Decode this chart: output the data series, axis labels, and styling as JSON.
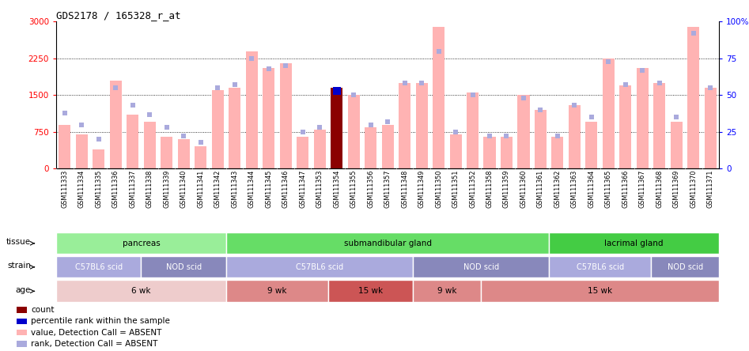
{
  "title": "GDS2178 / 165328_r_at",
  "samples": [
    "GSM111333",
    "GSM111334",
    "GSM111335",
    "GSM111336",
    "GSM111337",
    "GSM111338",
    "GSM111339",
    "GSM111340",
    "GSM111341",
    "GSM111342",
    "GSM111343",
    "GSM111344",
    "GSM111345",
    "GSM111346",
    "GSM111347",
    "GSM111353",
    "GSM111354",
    "GSM111355",
    "GSM111356",
    "GSM111357",
    "GSM111348",
    "GSM111349",
    "GSM111350",
    "GSM111351",
    "GSM111352",
    "GSM111358",
    "GSM111359",
    "GSM111360",
    "GSM111361",
    "GSM111362",
    "GSM111363",
    "GSM111364",
    "GSM111365",
    "GSM111366",
    "GSM111367",
    "GSM111368",
    "GSM111369",
    "GSM111370",
    "GSM111371"
  ],
  "bar_values": [
    900,
    700,
    400,
    1800,
    1100,
    950,
    650,
    600,
    450,
    1600,
    1650,
    2400,
    2050,
    2150,
    650,
    800,
    1650,
    1500,
    850,
    900,
    1750,
    1750,
    2900,
    700,
    1550,
    650,
    650,
    1500,
    1200,
    650,
    1300,
    950,
    2250,
    1700,
    2050,
    1750,
    950,
    2900,
    1650
  ],
  "rank_values": [
    38,
    30,
    20,
    55,
    43,
    37,
    28,
    22,
    18,
    55,
    57,
    75,
    68,
    70,
    25,
    28,
    53,
    50,
    30,
    32,
    58,
    58,
    80,
    25,
    50,
    22,
    22,
    48,
    40,
    22,
    43,
    35,
    73,
    57,
    67,
    58,
    35,
    92,
    55
  ],
  "highlighted_bar_idx": 16,
  "highlighted_rank_idx": 16,
  "bar_color_normal": "#FFB3B3",
  "bar_color_highlight": "#8B0000",
  "rank_color_normal": "#AAAADD",
  "rank_color_highlight": "#0000CC",
  "ylim_left": [
    0,
    3000
  ],
  "ylim_right": [
    0,
    100
  ],
  "yticks_left": [
    0,
    750,
    1500,
    2250,
    3000
  ],
  "yticks_right": [
    0,
    25,
    50,
    75,
    100
  ],
  "grid_values": [
    750,
    1500,
    2250
  ],
  "tissue_groups": [
    {
      "label": "pancreas",
      "start": 0,
      "end": 10,
      "color": "#99EE99"
    },
    {
      "label": "submandibular gland",
      "start": 10,
      "end": 29,
      "color": "#66DD66"
    },
    {
      "label": "lacrimal gland",
      "start": 29,
      "end": 39,
      "color": "#44CC44"
    }
  ],
  "strain_groups": [
    {
      "label": "C57BL6 scid",
      "start": 0,
      "end": 5,
      "color": "#AAAADD"
    },
    {
      "label": "NOD scid",
      "start": 5,
      "end": 10,
      "color": "#8888BB"
    },
    {
      "label": "C57BL6 scid",
      "start": 10,
      "end": 21,
      "color": "#AAAADD"
    },
    {
      "label": "NOD scid",
      "start": 21,
      "end": 29,
      "color": "#8888BB"
    },
    {
      "label": "C57BL6 scid",
      "start": 29,
      "end": 35,
      "color": "#AAAADD"
    },
    {
      "label": "NOD scid",
      "start": 35,
      "end": 39,
      "color": "#8888BB"
    }
  ],
  "age_groups": [
    {
      "label": "6 wk",
      "start": 0,
      "end": 10,
      "color": "#EECCCC"
    },
    {
      "label": "9 wk",
      "start": 10,
      "end": 16,
      "color": "#DD8888"
    },
    {
      "label": "15 wk",
      "start": 16,
      "end": 21,
      "color": "#CC5555"
    },
    {
      "label": "9 wk",
      "start": 21,
      "end": 25,
      "color": "#DD8888"
    },
    {
      "label": "15 wk",
      "start": 25,
      "end": 39,
      "color": "#DD8888"
    }
  ],
  "legend_items": [
    {
      "color": "#8B0000",
      "label": "count"
    },
    {
      "color": "#0000CC",
      "label": "percentile rank within the sample"
    },
    {
      "color": "#FFB3B3",
      "label": "value, Detection Call = ABSENT"
    },
    {
      "color": "#AAAADD",
      "label": "rank, Detection Call = ABSENT"
    }
  ]
}
